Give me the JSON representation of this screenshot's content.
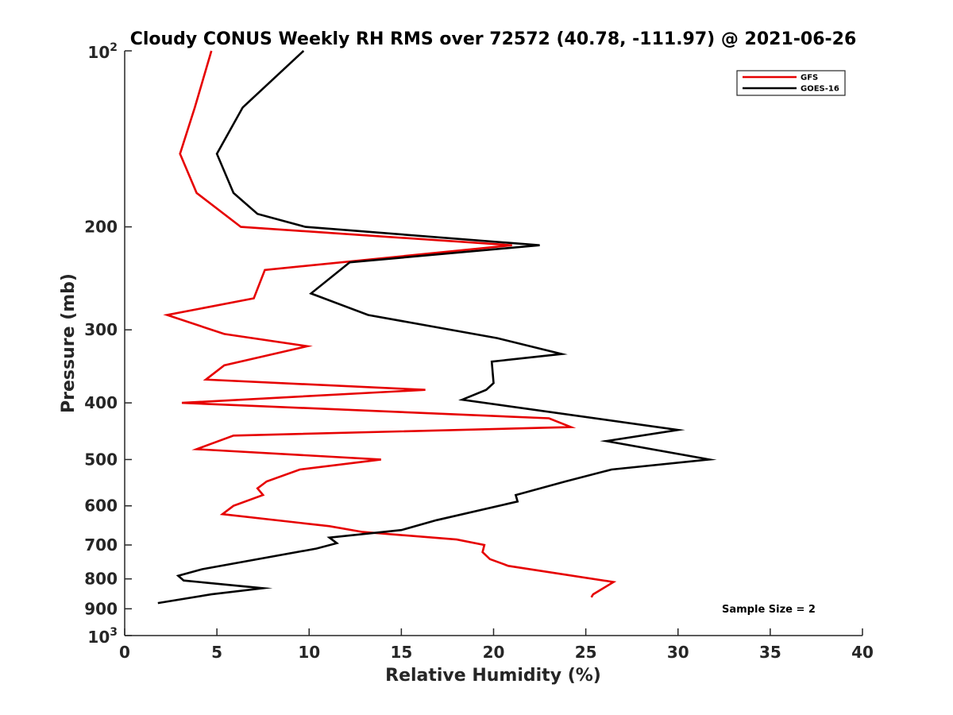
{
  "chart_data": {
    "type": "line",
    "title": "Cloudy CONUS Weekly RH RMS over 72572 (40.78, -111.97) @ 2021-06-26",
    "xlabel": "Relative Humidity (%)",
    "ylabel": "Pressure (mb)",
    "xlim": [
      0,
      40
    ],
    "ylim": [
      100,
      1000
    ],
    "yscale": "log",
    "yreversed": true,
    "xticks": [
      "0",
      "5",
      "10",
      "15",
      "20",
      "25",
      "30",
      "35",
      "40"
    ],
    "yticks": [
      {
        "value": 100,
        "label": "10",
        "sup": "2"
      },
      {
        "value": 200,
        "label": "200",
        "sup": ""
      },
      {
        "value": 300,
        "label": "300",
        "sup": ""
      },
      {
        "value": 400,
        "label": "400",
        "sup": ""
      },
      {
        "value": 500,
        "label": "500",
        "sup": ""
      },
      {
        "value": 600,
        "label": "600",
        "sup": ""
      },
      {
        "value": 700,
        "label": "700",
        "sup": ""
      },
      {
        "value": 800,
        "label": "800",
        "sup": ""
      },
      {
        "value": 900,
        "label": "900",
        "sup": ""
      },
      {
        "value": 1000,
        "label": "10",
        "sup": "3"
      }
    ],
    "legend_position": "top-right",
    "annotation": "Sample Size = 2",
    "series": [
      {
        "name": "GFS",
        "color": "#e60000",
        "points": [
          [
            4.7,
            100
          ],
          [
            3.8,
            125
          ],
          [
            3.0,
            150
          ],
          [
            3.9,
            175
          ],
          [
            6.3,
            200
          ],
          [
            21.0,
            215
          ],
          [
            7.6,
            237
          ],
          [
            7.0,
            265
          ],
          [
            2.3,
            283
          ],
          [
            5.4,
            305
          ],
          [
            9.9,
            320
          ],
          [
            5.4,
            345
          ],
          [
            4.4,
            365
          ],
          [
            16.3,
            380
          ],
          [
            3.1,
            400
          ],
          [
            23.0,
            425
          ],
          [
            24.2,
            440
          ],
          [
            5.9,
            455
          ],
          [
            3.9,
            480
          ],
          [
            13.9,
            500
          ],
          [
            9.5,
            520
          ],
          [
            7.7,
            545
          ],
          [
            7.2,
            560
          ],
          [
            7.5,
            575
          ],
          [
            5.9,
            600
          ],
          [
            5.3,
            620
          ],
          [
            11.1,
            650
          ],
          [
            12.9,
            665
          ],
          [
            18.0,
            685
          ],
          [
            19.5,
            700
          ],
          [
            19.4,
            720
          ],
          [
            19.8,
            740
          ],
          [
            20.8,
            760
          ],
          [
            26.5,
            810
          ],
          [
            25.4,
            850
          ],
          [
            25.3,
            860
          ]
        ]
      },
      {
        "name": "GOES-16",
        "color": "#000000",
        "points": [
          [
            9.7,
            100
          ],
          [
            6.4,
            125
          ],
          [
            5.0,
            150
          ],
          [
            5.9,
            175
          ],
          [
            7.2,
            190
          ],
          [
            9.8,
            200
          ],
          [
            22.5,
            215
          ],
          [
            12.2,
            230
          ],
          [
            10.1,
            260
          ],
          [
            13.2,
            283
          ],
          [
            20.2,
            310
          ],
          [
            23.7,
            330
          ],
          [
            19.9,
            340
          ],
          [
            20.0,
            370
          ],
          [
            19.6,
            380
          ],
          [
            18.3,
            395
          ],
          [
            30.0,
            445
          ],
          [
            26.1,
            465
          ],
          [
            31.7,
            500
          ],
          [
            26.4,
            520
          ],
          [
            23.9,
            545
          ],
          [
            21.2,
            575
          ],
          [
            21.3,
            590
          ],
          [
            16.9,
            635
          ],
          [
            15.0,
            660
          ],
          [
            11.1,
            680
          ],
          [
            11.5,
            695
          ],
          [
            10.4,
            710
          ],
          [
            4.2,
            770
          ],
          [
            2.9,
            790
          ],
          [
            3.2,
            805
          ],
          [
            7.5,
            830
          ],
          [
            4.7,
            850
          ],
          [
            1.8,
            880
          ]
        ]
      }
    ]
  }
}
